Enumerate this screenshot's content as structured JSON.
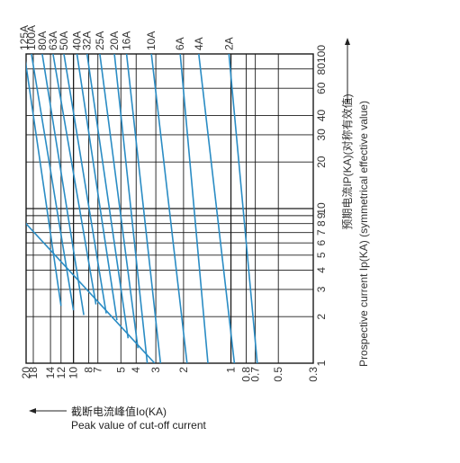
{
  "chart_data": {
    "type": "line",
    "title": "",
    "x_axis": {
      "scale": "log",
      "range": [
        1,
        100
      ],
      "ticks": [
        1,
        2,
        3,
        4,
        5,
        6,
        7,
        8,
        9,
        10,
        20,
        30,
        40,
        60,
        80,
        100
      ],
      "tick_labels": [
        "1",
        "2",
        "3",
        "4",
        "5",
        "6",
        "7",
        "8",
        "9",
        "10",
        "20",
        "30",
        "40",
        "60",
        "80",
        "100"
      ],
      "label_cn": "预期电流IP(KA)(对称有效值)",
      "label_en": "Prospective current Ip(KA) (symmetrical effective value)"
    },
    "y_axis": {
      "scale": "log",
      "range": [
        0.3,
        20
      ],
      "ticks": [
        0.3,
        0.5,
        0.7,
        0.8,
        1,
        2,
        3,
        4,
        5,
        7,
        8,
        10,
        12,
        14,
        18,
        20
      ],
      "tick_labels": [
        "0.3",
        "0.5",
        "0.7",
        "0.8",
        "1",
        "2",
        "3",
        "4",
        "5",
        "7",
        "8",
        "10",
        "12",
        "14",
        "18",
        "20"
      ],
      "label_cn": "截断电流峰值Io(KA)",
      "label_en": "Peak value of cut-off current"
    },
    "series": [
      {
        "name": "125A",
        "points": [
          [
            2.35,
            12
          ],
          [
            100,
            20.5
          ]
        ]
      },
      {
        "name": "100A",
        "points": [
          [
            2.2,
            10
          ],
          [
            100,
            18.5
          ]
        ]
      },
      {
        "name": "80A",
        "points": [
          [
            2.05,
            8.6
          ],
          [
            100,
            15.8
          ]
        ]
      },
      {
        "name": "63A",
        "points": [
          [
            2.4,
            7.2
          ],
          [
            100,
            13.5
          ]
        ]
      },
      {
        "name": "50A",
        "points": [
          [
            2.1,
            6.2
          ],
          [
            100,
            11.5
          ]
        ]
      },
      {
        "name": "40A",
        "points": [
          [
            1.9,
            5.3
          ],
          [
            100,
            9.5
          ]
        ]
      },
      {
        "name": "32A",
        "points": [
          [
            1.45,
            4.5
          ],
          [
            100,
            8.2
          ]
        ]
      },
      {
        "name": "25A",
        "points": [
          [
            1.25,
            3.9
          ],
          [
            100,
            6.8
          ]
        ]
      },
      {
        "name": "20A",
        "points": [
          [
            1.0,
            3.4
          ],
          [
            100,
            5.5
          ]
        ]
      },
      {
        "name": "16A",
        "points": [
          [
            1.0,
            2.8
          ],
          [
            100,
            4.6
          ]
        ]
      },
      {
        "name": "10A",
        "points": [
          [
            1.0,
            1.9
          ],
          [
            100,
            3.2
          ]
        ]
      },
      {
        "name": "6A",
        "points": [
          [
            1.0,
            1.4
          ],
          [
            100,
            2.1
          ]
        ]
      },
      {
        "name": "4A",
        "points": [
          [
            1.0,
            0.95
          ],
          [
            100,
            1.6
          ]
        ]
      },
      {
        "name": "2A",
        "points": [
          [
            1.0,
            0.68
          ],
          [
            100,
            1.03
          ]
        ]
      },
      {
        "name": "",
        "points": [
          [
            1.0,
            3.05
          ],
          [
            8.2,
            20.5
          ]
        ]
      }
    ],
    "line_color": "#2a8cc4",
    "grid": true,
    "grid_color": "#1a1a1a"
  }
}
